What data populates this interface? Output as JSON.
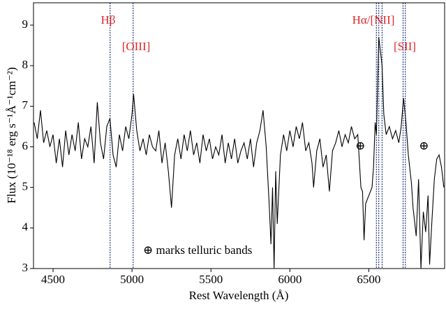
{
  "chart_data": {
    "type": "line",
    "xlabel": "Rest Wavelength (Å)",
    "ylabel": "Flux (10⁻¹⁸ erg s⁻¹Å⁻¹cm⁻²)",
    "xlim": [
      4376,
      6980
    ],
    "ylim": [
      3,
      9.55
    ],
    "xticks": [
      4500,
      5000,
      5500,
      6000,
      6500
    ],
    "yticks": [
      3,
      4,
      5,
      6,
      7,
      8,
      9
    ],
    "series": [
      {
        "color": "#000000",
        "x": [
          4380,
          4400,
          4420,
          4440,
          4460,
          4480,
          4500,
          4520,
          4540,
          4560,
          4580,
          4600,
          4620,
          4640,
          4660,
          4680,
          4700,
          4720,
          4740,
          4760,
          4780,
          4800,
          4820,
          4840,
          4860,
          4880,
          4900,
          4920,
          4940,
          4960,
          4980,
          5000,
          5010,
          5030,
          5050,
          5070,
          5090,
          5110,
          5130,
          5150,
          5170,
          5190,
          5210,
          5230,
          5250,
          5270,
          5290,
          5310,
          5330,
          5350,
          5370,
          5390,
          5410,
          5430,
          5450,
          5470,
          5490,
          5510,
          5530,
          5550,
          5570,
          5590,
          5610,
          5630,
          5650,
          5670,
          5690,
          5710,
          5730,
          5750,
          5770,
          5790,
          5810,
          5830,
          5850,
          5870,
          5880,
          5890,
          5900,
          5910,
          5920,
          5940,
          5960,
          5980,
          6000,
          6020,
          6040,
          6060,
          6080,
          6100,
          6120,
          6140,
          6150,
          6170,
          6190,
          6210,
          6230,
          6250,
          6270,
          6290,
          6310,
          6330,
          6350,
          6370,
          6390,
          6410,
          6430,
          6450,
          6460,
          6470,
          6480,
          6500,
          6520,
          6530,
          6540,
          6548,
          6563,
          6575,
          6584,
          6595,
          6610,
          6630,
          6650,
          6670,
          6690,
          6705,
          6720,
          6735,
          6750,
          6770,
          6780,
          6800,
          6815,
          6830,
          6845,
          6860,
          6875,
          6885,
          6900,
          6915,
          6930,
          6945,
          6960,
          6975
        ],
        "values": [
          6.6,
          6.2,
          6.9,
          6.1,
          6.4,
          6.0,
          6.3,
          5.6,
          6.2,
          5.5,
          6.4,
          5.8,
          6.3,
          5.9,
          6.6,
          5.7,
          6.2,
          6.0,
          6.5,
          5.6,
          7.1,
          6.1,
          5.7,
          6.5,
          6.7,
          5.8,
          5.5,
          6.3,
          5.9,
          6.5,
          6.2,
          6.8,
          7.3,
          6.4,
          5.9,
          6.2,
          5.8,
          6.3,
          6.0,
          5.9,
          6.4,
          5.6,
          6.1,
          5.4,
          4.5,
          5.8,
          6.2,
          5.7,
          6.3,
          5.9,
          6.4,
          5.8,
          6.1,
          5.6,
          6.3,
          5.9,
          6.2,
          5.7,
          6.0,
          5.8,
          6.3,
          5.6,
          6.1,
          5.7,
          6.2,
          5.6,
          5.9,
          6.1,
          5.7,
          6.2,
          5.5,
          6.1,
          6.4,
          6.9,
          6.0,
          4.5,
          3.6,
          5.0,
          3.0,
          5.4,
          4.1,
          5.8,
          6.3,
          5.9,
          6.4,
          6.0,
          6.5,
          6.2,
          6.6,
          5.9,
          6.1,
          5.6,
          5.0,
          5.9,
          6.2,
          5.5,
          5.8,
          4.9,
          5.9,
          6.1,
          6.4,
          6.0,
          6.3,
          6.1,
          6.5,
          6.2,
          6.3,
          5.0,
          4.9,
          3.7,
          4.6,
          4.8,
          5.0,
          5.5,
          6.6,
          6.3,
          8.7,
          8.3,
          8.0,
          6.8,
          6.3,
          6.5,
          6.2,
          6.4,
          6.1,
          6.5,
          7.2,
          6.6,
          5.8,
          5.1,
          4.5,
          3.8,
          5.2,
          3.0,
          4.4,
          3.9,
          4.8,
          3.1,
          4.2,
          5.2,
          5.7,
          5.8,
          5.5,
          5.0
        ]
      }
    ],
    "lines": {
      "color": "#1f3a7a",
      "x": [
        4861,
        5007,
        6548,
        6563,
        6584,
        6717,
        6731
      ]
    },
    "annotations": [
      {
        "text": "Hβ"
      },
      {
        "text": "[OIII]"
      },
      {
        "text": "Hα/[NII]"
      },
      {
        "text": "[SII]"
      }
    ],
    "telluric_markers": {
      "label": "⊕",
      "x": [
        6446,
        6849
      ],
      "y": [
        6.0,
        6.0
      ]
    },
    "note": "⊕ marks telluric bands"
  }
}
